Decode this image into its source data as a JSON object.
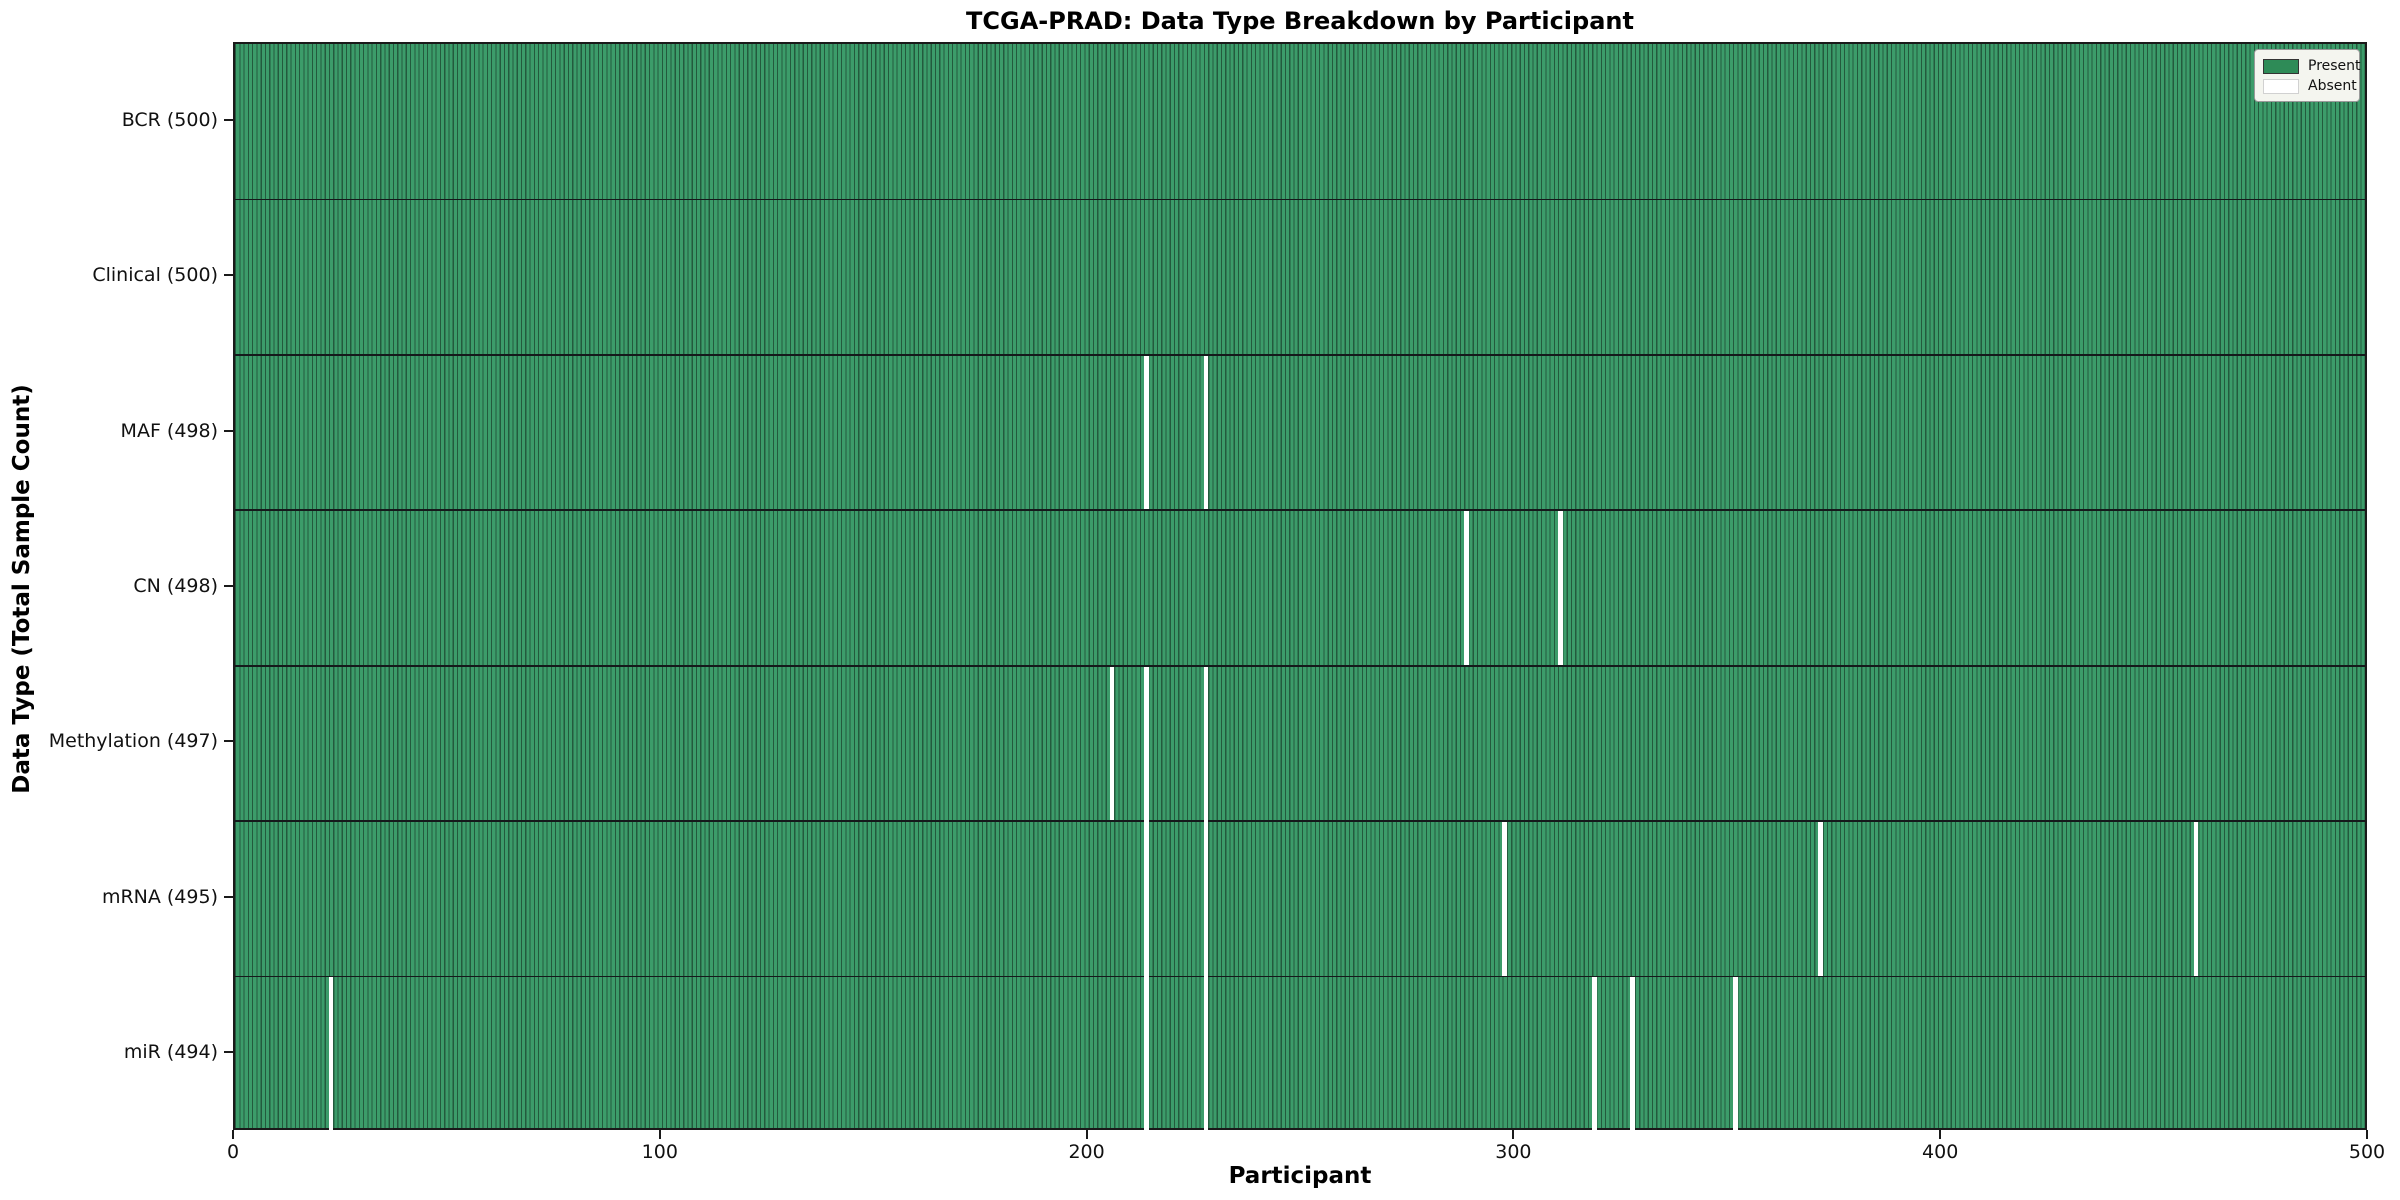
{
  "figure": {
    "title": "TCGA-PRAD: Data Type Breakdown by Participant",
    "xlabel": "Participant",
    "ylabel": "Data Type (Total Sample Count)"
  },
  "colors": {
    "bar_fill": "#3c9c6a",
    "bar_edge": "#235a3d",
    "present": "#2E8B57",
    "absent": "#ffffff",
    "separator": "#15191b",
    "spine": "#1a1a1a",
    "legend_bg": "#f4f5ef",
    "legend_border": "#9a9a9a"
  },
  "chart_data": {
    "type": "heatmap",
    "title": "TCGA-PRAD: Data Type Breakdown by Participant",
    "xlabel": "Participant",
    "ylabel": "Data Type (Total Sample Count)",
    "x_range": [
      0,
      500
    ],
    "x_ticks": [
      0,
      100,
      200,
      300,
      400,
      500
    ],
    "n_participants": 500,
    "grid": false,
    "legend_position": "upper right",
    "legend": [
      {
        "label": "Present",
        "color": "#2E8B57"
      },
      {
        "label": "Absent",
        "color": "#ffffff"
      }
    ],
    "rows": [
      {
        "label": "BCR (500)",
        "name": "BCR",
        "total": 500,
        "absent_participants": []
      },
      {
        "label": "Clinical (500)",
        "name": "Clinical",
        "total": 500,
        "absent_participants": []
      },
      {
        "label": "MAF (498)",
        "name": "MAF",
        "total": 498,
        "absent_participants": [
          213,
          227
        ]
      },
      {
        "label": "CN (498)",
        "name": "CN",
        "total": 498,
        "absent_participants": [
          288,
          310
        ]
      },
      {
        "label": "Methylation (497)",
        "name": "Methylation",
        "total": 497,
        "absent_participants": [
          205,
          213,
          227
        ]
      },
      {
        "label": "mRNA (495)",
        "name": "mRNA",
        "total": 495,
        "absent_participants": [
          213,
          227,
          297,
          371,
          459
        ]
      },
      {
        "label": "miR (494)",
        "name": "miR",
        "total": 494,
        "absent_participants": [
          22,
          213,
          227,
          318,
          327,
          351
        ]
      }
    ]
  }
}
